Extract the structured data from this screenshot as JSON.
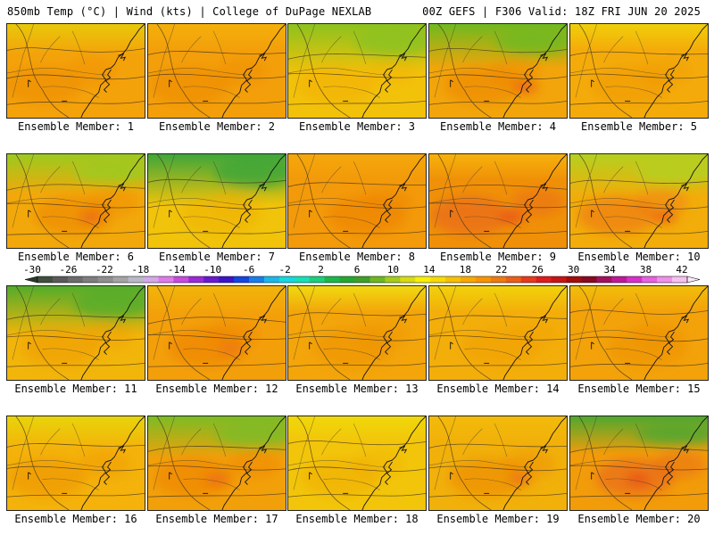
{
  "header": {
    "left": "850mb Temp (°C) | Wind (kts) | College of DuPage NEXLAB",
    "right": "00Z GEFS | F306 Valid: 18Z FRI JUN 20 2025"
  },
  "members": [
    {
      "label": "Ensemble Member: 1",
      "base": "#f4a20a",
      "top": "#e8c80a",
      "warm": "#ee8a08",
      "warmStrength": 0.5,
      "green": 0.15,
      "hot": 0
    },
    {
      "label": "Ensemble Member: 2",
      "base": "#f39f0a",
      "top": "#f4b00a",
      "warm": "#ee8a08",
      "warmStrength": 0.6,
      "green": 0.05,
      "hot": 0
    },
    {
      "label": "Ensemble Member: 3",
      "base": "#f2c20a",
      "top": "#8cc21e",
      "warm": "#f4a00a",
      "warmStrength": 0.3,
      "green": 0.55,
      "hot": 0
    },
    {
      "label": "Ensemble Member: 4",
      "base": "#f2a50a",
      "top": "#6fb91f",
      "warm": "#ee8208",
      "warmStrength": 0.5,
      "green": 0.45,
      "hot": 0.5
    },
    {
      "label": "Ensemble Member: 5",
      "base": "#f4ab0a",
      "top": "#f0cf0a",
      "warm": "#ee9208",
      "warmStrength": 0.4,
      "green": 0.05,
      "hot": 0
    },
    {
      "label": "Ensemble Member: 6",
      "base": "#f2a80a",
      "top": "#9cca1f",
      "warm": "#ee8208",
      "warmStrength": 0.5,
      "green": 0.35,
      "hot": 0.4
    },
    {
      "label": "Ensemble Member: 7",
      "base": "#f1c30a",
      "top": "#3fa63a",
      "warm": "#f0a50a",
      "warmStrength": 0.3,
      "green": 0.6,
      "hot": 0
    },
    {
      "label": "Ensemble Member: 8",
      "base": "#f39a0a",
      "top": "#f4a80a",
      "warm": "#ee8208",
      "warmStrength": 0.6,
      "green": 0.02,
      "hot": 0
    },
    {
      "label": "Ensemble Member: 9",
      "base": "#f09008",
      "top": "#f6b20a",
      "warm": "#e8621a",
      "warmStrength": 0.6,
      "green": 0.05,
      "hot": 0.6
    },
    {
      "label": "Ensemble Member: 10",
      "base": "#f2ad0a",
      "top": "#b4d01f",
      "warm": "#ee6a14",
      "warmStrength": 0.5,
      "green": 0.4,
      "hot": 0.5
    },
    {
      "label": "Ensemble Member: 11",
      "base": "#f2b50a",
      "top": "#54ac2b",
      "warm": "#ee9008",
      "warmStrength": 0.4,
      "green": 0.55,
      "hot": 0
    },
    {
      "label": "Ensemble Member: 12",
      "base": "#f39f0a",
      "top": "#f2b50a",
      "warm": "#ee8208",
      "warmStrength": 0.6,
      "green": 0.12,
      "hot": 0.2
    },
    {
      "label": "Ensemble Member: 13",
      "base": "#f3a50a",
      "top": "#f0da10",
      "warm": "#ee9008",
      "warmStrength": 0.5,
      "green": 0.05,
      "hot": 0
    },
    {
      "label": "Ensemble Member: 14",
      "base": "#f3ae0a",
      "top": "#f1d20a",
      "warm": "#f09a08",
      "warmStrength": 0.4,
      "green": 0.05,
      "hot": 0
    },
    {
      "label": "Ensemble Member: 15",
      "base": "#f3a20a",
      "top": "#f1be0a",
      "warm": "#ee9008",
      "warmStrength": 0.5,
      "green": 0.02,
      "hot": 0
    },
    {
      "label": "Ensemble Member: 16",
      "base": "#f4b20a",
      "top": "#e8d40a",
      "warm": "#ee9008",
      "warmStrength": 0.5,
      "green": 0.2,
      "hot": 0
    },
    {
      "label": "Ensemble Member: 17",
      "base": "#f2a00a",
      "top": "#7cbc24",
      "warm": "#ee8208",
      "warmStrength": 0.6,
      "green": 0.4,
      "hot": 0.3
    },
    {
      "label": "Ensemble Member: 18",
      "base": "#f2c50a",
      "top": "#f0d80a",
      "warm": "#f0a20a",
      "warmStrength": 0.4,
      "green": 0.05,
      "hot": 0
    },
    {
      "label": "Ensemble Member: 19",
      "base": "#f1b00a",
      "top": "#f3bb0a",
      "warm": "#ee8208",
      "warmStrength": 0.5,
      "green": 0.05,
      "hot": 0.3
    },
    {
      "label": "Ensemble Member: 20",
      "base": "#f29c0a",
      "top": "#4fa82f",
      "warm": "#e8621a",
      "warmStrength": 0.6,
      "green": 0.3,
      "hot": 0.5
    }
  ],
  "colorbar": {
    "ticks": [
      "-30",
      "-26",
      "-22",
      "-18",
      "-14",
      "-10",
      "-6",
      "-2",
      "2",
      "6",
      "10",
      "14",
      "18",
      "22",
      "26",
      "30",
      "34",
      "38",
      "42"
    ],
    "colors": [
      "#3f4f3f",
      "#5a5a5a",
      "#6c6c6c",
      "#7e7e7e",
      "#8f8f8f",
      "#a4a4a4",
      "#b9b9c8",
      "#d4a8e8",
      "#e07ae8",
      "#c84ae0",
      "#9a2ad8",
      "#6a1ad0",
      "#3a16c8",
      "#1446e0",
      "#1a7ee8",
      "#1ab8e8",
      "#16d8e0",
      "#16e0b8",
      "#1ad07a",
      "#1ab84a",
      "#24a830",
      "#3ea028",
      "#6cb820",
      "#a4cc1a",
      "#d8dc10",
      "#f8f000",
      "#f8da00",
      "#f8c000",
      "#f8a800",
      "#f89400",
      "#f07a10",
      "#ec5e18",
      "#e83a1c",
      "#e01c1c",
      "#c81414",
      "#a40c0c",
      "#880a22",
      "#a41060",
      "#c0189a",
      "#d830c8",
      "#e860e0",
      "#f090e8",
      "#f8c0f0"
    ]
  }
}
